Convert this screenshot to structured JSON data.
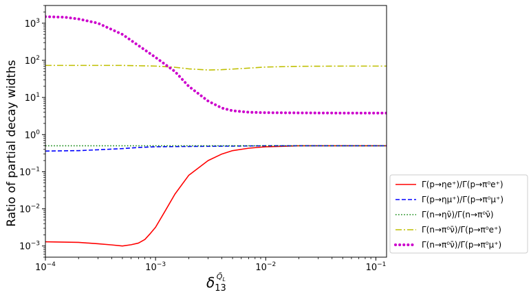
{
  "chart_data": {
    "type": "line",
    "title": "",
    "xlabel": "δ₁₃^{Q̃_L}",
    "xlabel_main": "δ",
    "xlabel_sub": "13",
    "xlabel_sup": "Q̃",
    "xlabel_sup_sub": "L",
    "ylabel": "Ratio of partial decay widths",
    "x_scale": "log",
    "y_scale": "log",
    "xlim": [
      0.0001,
      0.125
    ],
    "ylim": [
      0.0005,
      3000
    ],
    "x_ticks": [
      {
        "value": 0.0001,
        "base": "10",
        "exp": "−4"
      },
      {
        "value": 0.001,
        "base": "10",
        "exp": "−3"
      },
      {
        "value": 0.01,
        "base": "10",
        "exp": "−2"
      },
      {
        "value": 0.1,
        "base": "10",
        "exp": "−1"
      }
    ],
    "y_ticks": [
      {
        "value": 0.001,
        "base": "10",
        "exp": "−3"
      },
      {
        "value": 0.01,
        "base": "10",
        "exp": "−2"
      },
      {
        "value": 0.1,
        "base": "10",
        "exp": "−1"
      },
      {
        "value": 1,
        "base": "10",
        "exp": "0"
      },
      {
        "value": 10,
        "base": "10",
        "exp": "1"
      },
      {
        "value": 100,
        "base": "10",
        "exp": "2"
      },
      {
        "value": 1000,
        "base": "10",
        "exp": "3"
      }
    ],
    "grid": false,
    "legend_position": "outside-right-bottom",
    "series": [
      {
        "name": "Γ(p→ηe⁺)/Γ(p→π⁰e⁺)",
        "color": "#ff0000",
        "style": "solid",
        "x": [
          0.0001,
          0.0002,
          0.0003,
          0.0004,
          0.0005,
          0.0006,
          0.0007,
          0.0008,
          0.0009,
          0.001,
          0.0012,
          0.0015,
          0.002,
          0.003,
          0.004,
          0.005,
          0.007,
          0.01,
          0.02,
          0.05,
          0.125
        ],
        "y": [
          0.0013,
          0.00125,
          0.00115,
          0.00107,
          0.001,
          0.00108,
          0.0012,
          0.0015,
          0.0022,
          0.0032,
          0.008,
          0.025,
          0.08,
          0.2,
          0.3,
          0.37,
          0.43,
          0.47,
          0.5,
          0.5,
          0.5
        ]
      },
      {
        "name": "Γ(p→ημ⁺)/Γ(p→π⁰μ⁺)",
        "color": "#0000ff",
        "style": "dashed",
        "x": [
          0.0001,
          0.0002,
          0.0003,
          0.0005,
          0.0007,
          0.001,
          0.002,
          0.005,
          0.01,
          0.125
        ],
        "y": [
          0.36,
          0.37,
          0.39,
          0.42,
          0.45,
          0.47,
          0.48,
          0.49,
          0.5,
          0.5
        ]
      },
      {
        "name": "Γ(n→ην̄)/Γ(n→π⁰ν̄)",
        "color": "#008000",
        "style": "dotted",
        "x": [
          0.0001,
          0.125
        ],
        "y": [
          0.5,
          0.5
        ]
      },
      {
        "name": "Γ(n→π⁰ν̄)/Γ(p→π⁰e⁺)",
        "color": "#bfbf00",
        "style": "dashdot",
        "x": [
          0.0001,
          0.0005,
          0.001,
          0.0015,
          0.002,
          0.003,
          0.004,
          0.006,
          0.01,
          0.02,
          0.05,
          0.125
        ],
        "y": [
          73,
          73,
          70,
          65,
          59,
          55,
          56,
          60,
          66,
          69,
          70,
          70
        ]
      },
      {
        "name": "Γ(n→π⁰ν̄)/Γ(p→π⁰μ⁺)",
        "color": "#cc00cc",
        "style": "thick-dotted",
        "x": [
          0.0001,
          0.00015,
          0.0002,
          0.0003,
          0.0005,
          0.0007,
          0.001,
          0.0015,
          0.002,
          0.003,
          0.004,
          0.005,
          0.007,
          0.01,
          0.02,
          0.05,
          0.125
        ],
        "y": [
          1500,
          1450,
          1300,
          1000,
          500,
          250,
          120,
          50,
          20,
          8,
          5.2,
          4.4,
          4.0,
          3.9,
          3.85,
          3.8,
          3.8
        ]
      }
    ]
  }
}
